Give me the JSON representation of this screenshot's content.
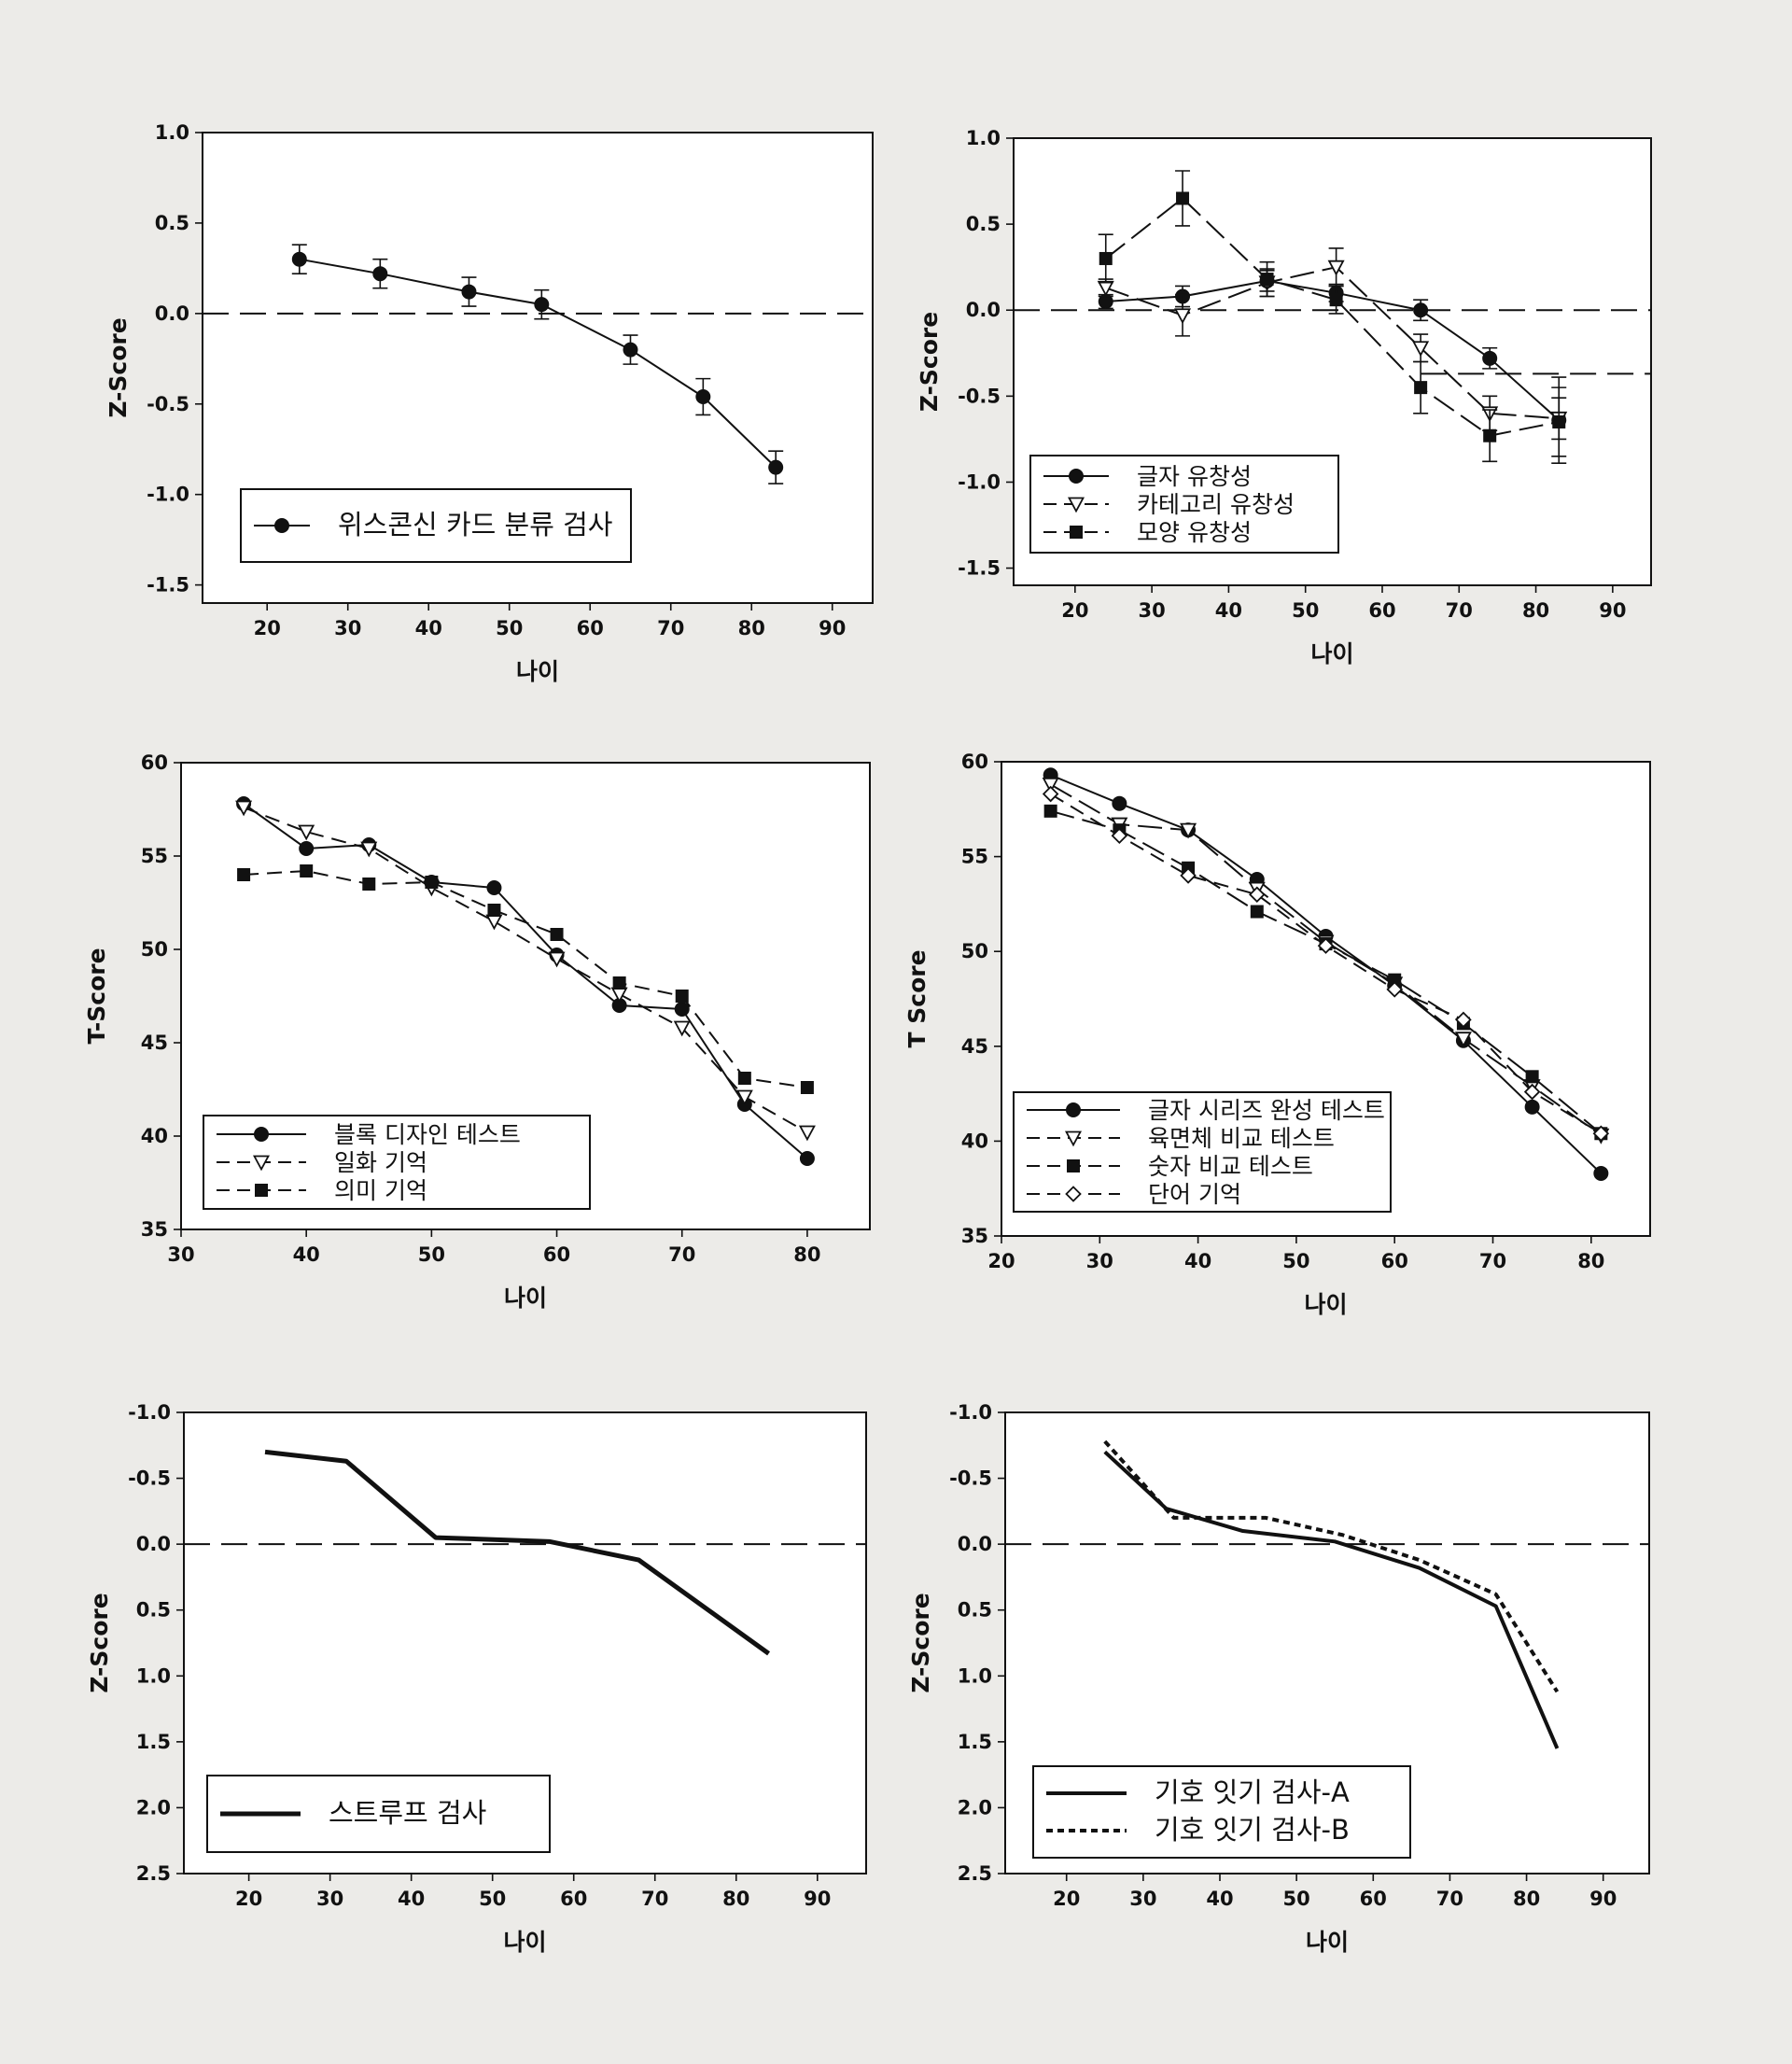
{
  "chart_data": [
    {
      "type": "line",
      "xlabel": "나이",
      "ylabel": "Z-Score",
      "xlim": [
        12,
        95
      ],
      "ylim": [
        -1.6,
        1.0
      ],
      "xticks": [
        "20",
        "30",
        "40",
        "50",
        "60",
        "70",
        "80",
        "90"
      ],
      "yticks": [
        "1.0",
        "0.5",
        "0.0",
        "-0.5",
        "-1.0",
        "-1.5"
      ],
      "reference_line": 0.0,
      "error_bars": true,
      "legend_position": "bottom-left",
      "series": [
        {
          "name": "위스콘신 카드 분류 검사",
          "marker": "filled-circle",
          "dash": "solid",
          "x": [
            24,
            34,
            45,
            54,
            65,
            74,
            83
          ],
          "y": [
            0.3,
            0.22,
            0.12,
            0.05,
            -0.2,
            -0.46,
            -0.85
          ],
          "err": [
            0.08,
            0.08,
            0.08,
            0.08,
            0.08,
            0.1,
            0.09
          ]
        }
      ]
    },
    {
      "type": "line",
      "xlabel": "나이",
      "ylabel": "Z-Score",
      "xlim": [
        12,
        95
      ],
      "ylim": [
        -1.6,
        1.0
      ],
      "xticks": [
        "20",
        "30",
        "40",
        "50",
        "60",
        "70",
        "80",
        "90"
      ],
      "yticks": [
        "1.0",
        "0.5",
        "0.0",
        "-0.5",
        "-1.0",
        "-1.5"
      ],
      "reference_line": 0.0,
      "reference_line_2": -0.37,
      "error_bars": true,
      "legend_position": "bottom-left",
      "series": [
        {
          "name": "글자 유창성",
          "marker": "filled-circle",
          "dash": "solid",
          "x": [
            24,
            34,
            45,
            54,
            65,
            74,
            83
          ],
          "y": [
            0.05,
            0.08,
            0.17,
            0.1,
            0.0,
            -0.28,
            -0.64
          ],
          "err": [
            0.04,
            0.06,
            0.06,
            0.05,
            0.06,
            0.06,
            0.25
          ]
        },
        {
          "name": "카테고리 유창성",
          "marker": "open-triangle-down",
          "dash": "long-dash",
          "x": [
            24,
            34,
            45,
            54,
            65,
            74,
            83
          ],
          "y": [
            0.13,
            -0.03,
            0.16,
            0.25,
            -0.22,
            -0.6,
            -0.63
          ],
          "err": [
            0.05,
            0.12,
            0.08,
            0.11,
            0.08,
            0.1,
            0.12
          ]
        },
        {
          "name": "모양 유창성",
          "marker": "filled-square",
          "dash": "long-dash",
          "x": [
            24,
            34,
            45,
            54,
            65,
            74,
            83
          ],
          "y": [
            0.3,
            0.65,
            0.18,
            0.06,
            -0.45,
            -0.73,
            -0.65
          ],
          "err": [
            0.14,
            0.16,
            0.1,
            0.08,
            0.15,
            0.15,
            0.2
          ]
        }
      ]
    },
    {
      "type": "line",
      "xlabel": "나이",
      "ylabel": "T-Score",
      "xlim": [
        30,
        85
      ],
      "ylim": [
        35,
        60
      ],
      "xticks": [
        "30",
        "40",
        "50",
        "60",
        "70",
        "80"
      ],
      "yticks": [
        "60",
        "55",
        "50",
        "45",
        "40",
        "35"
      ],
      "legend_position": "bottom-left",
      "series": [
        {
          "name": "블록 디자인 테스트",
          "marker": "filled-circle",
          "dash": "solid",
          "x": [
            35,
            40,
            45,
            50,
            55,
            60,
            65,
            70,
            75,
            80
          ],
          "y": [
            57.8,
            55.4,
            55.6,
            53.6,
            53.3,
            49.7,
            47.0,
            46.8,
            41.7,
            38.8
          ]
        },
        {
          "name": "일화 기억",
          "marker": "open-triangle-down",
          "dash": "dash",
          "x": [
            35,
            40,
            45,
            50,
            55,
            60,
            65,
            70,
            75,
            80
          ],
          "y": [
            57.6,
            56.3,
            55.4,
            53.3,
            51.5,
            49.5,
            47.6,
            45.8,
            42.1,
            40.2
          ]
        },
        {
          "name": "의미 기억",
          "marker": "filled-square",
          "dash": "dash",
          "x": [
            35,
            40,
            45,
            50,
            55,
            60,
            65,
            70,
            75,
            80
          ],
          "y": [
            54.0,
            54.2,
            53.5,
            53.6,
            52.1,
            50.8,
            48.2,
            47.5,
            43.1,
            42.6
          ]
        }
      ]
    },
    {
      "type": "line",
      "xlabel": "나이",
      "ylabel": "T Score",
      "xlim": [
        20,
        86
      ],
      "ylim": [
        35,
        60
      ],
      "xticks": [
        "20",
        "30",
        "40",
        "50",
        "60",
        "70",
        "80"
      ],
      "yticks": [
        "60",
        "55",
        "50",
        "45",
        "40",
        "35"
      ],
      "legend_position": "bottom-left",
      "series": [
        {
          "name": "글자 시리즈 완성 테스트",
          "marker": "filled-circle",
          "dash": "solid",
          "x": [
            25,
            32,
            39,
            46,
            53,
            60,
            67,
            74,
            81
          ],
          "y": [
            59.3,
            57.8,
            56.4,
            53.8,
            50.8,
            48.2,
            45.3,
            41.8,
            38.3
          ]
        },
        {
          "name": "육면체 비교 테스트",
          "marker": "open-triangle-down",
          "dash": "long-dash",
          "x": [
            25,
            32,
            39,
            46,
            53,
            60,
            67,
            74,
            81
          ],
          "y": [
            58.8,
            56.7,
            56.4,
            53.3,
            50.5,
            48.3,
            45.4,
            42.9,
            40.3
          ]
        },
        {
          "name": "숫자 비교 테스트",
          "marker": "filled-square",
          "dash": "long-dash",
          "x": [
            25,
            32,
            39,
            46,
            53,
            60,
            67,
            74,
            81
          ],
          "y": [
            57.4,
            56.4,
            54.4,
            52.1,
            50.4,
            48.5,
            46.2,
            43.4,
            40.4
          ]
        },
        {
          "name": "단어 기억",
          "marker": "open-diamond",
          "dash": "dash",
          "x": [
            25,
            32,
            39,
            46,
            53,
            60,
            67,
            74,
            81
          ],
          "y": [
            58.3,
            56.1,
            54.0,
            53.0,
            50.3,
            48.0,
            46.4,
            42.6,
            40.4
          ]
        }
      ]
    },
    {
      "type": "line",
      "xlabel": "나이",
      "ylabel": "Z-Score",
      "xlim": [
        12,
        96
      ],
      "ylim": [
        -1.0,
        2.5
      ],
      "y_reversed": true,
      "xticks": [
        "20",
        "30",
        "40",
        "50",
        "60",
        "70",
        "80",
        "90"
      ],
      "yticks": [
        "-1.0",
        "-0.5",
        "0.0",
        "0.5",
        "1.0",
        "1.5",
        "2.0",
        "2.5"
      ],
      "reference_line": 0.0,
      "legend_position": "bottom-left",
      "series": [
        {
          "name": "스트루프 검사",
          "dash": "solid",
          "x": [
            22,
            32,
            43,
            57,
            68,
            84
          ],
          "y": [
            -0.7,
            -0.63,
            -0.05,
            -0.02,
            0.12,
            0.83
          ]
        }
      ]
    },
    {
      "type": "line",
      "xlabel": "나이",
      "ylabel": "Z-Score",
      "xlim": [
        12,
        96
      ],
      "ylim": [
        -1.0,
        2.5
      ],
      "y_reversed": true,
      "xticks": [
        "20",
        "30",
        "40",
        "50",
        "60",
        "70",
        "80",
        "90"
      ],
      "yticks": [
        "-1.0",
        "-0.5",
        "0.0",
        "0.5",
        "1.0",
        "1.5",
        "2.0",
        "2.5"
      ],
      "reference_line": 0.0,
      "legend_position": "bottom-left",
      "series": [
        {
          "name": "기호 잇기 검사-A",
          "dash": "solid",
          "x": [
            25,
            33,
            43,
            55,
            66,
            76,
            84
          ],
          "y": [
            -0.7,
            -0.27,
            -0.1,
            -0.02,
            0.18,
            0.47,
            1.55
          ]
        },
        {
          "name": "기호 잇기 검사-B",
          "dash": "dotted",
          "x": [
            25,
            34,
            46,
            56,
            66,
            76,
            84
          ],
          "y": [
            -0.78,
            -0.2,
            -0.2,
            -0.07,
            0.12,
            0.38,
            1.12
          ]
        }
      ]
    }
  ]
}
